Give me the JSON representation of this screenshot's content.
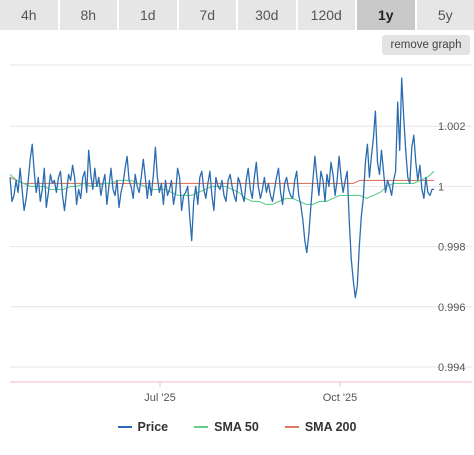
{
  "tabs": [
    {
      "label": "4h",
      "active": false
    },
    {
      "label": "8h",
      "active": false
    },
    {
      "label": "1d",
      "active": false
    },
    {
      "label": "7d",
      "active": false
    },
    {
      "label": "30d",
      "active": false
    },
    {
      "label": "120d",
      "active": false
    },
    {
      "label": "1y",
      "active": true
    },
    {
      "label": "5y",
      "active": false
    }
  ],
  "remove_label": "remove graph",
  "colors": {
    "price": "#2b6cb0",
    "sma50": "#5fcf8b",
    "sma200": "#e07860",
    "grid": "#e6e6e6",
    "axis": "#f0b9c6"
  },
  "chart_data": {
    "type": "line",
    "title": "",
    "xlabel": "",
    "ylabel": "",
    "x_ticks": [
      "Jul '25",
      "Oct '25"
    ],
    "y_ticks": [
      0.994,
      0.996,
      0.998,
      1,
      1.002
    ],
    "y_tick_labels": [
      "0.994",
      "0.996",
      "0.998",
      "1",
      "1.002"
    ],
    "ylim": [
      0.9935,
      1.0042
    ],
    "grid": "horizontal",
    "legend_position": "bottom",
    "series": [
      {
        "name": "Price",
        "color": "#2b6cb0",
        "values": [
          1.0003,
          0.9995,
          0.9997,
          1.0002,
          0.9998,
          1.0006,
          0.9999,
          0.9992,
          0.9996,
          1.0002,
          1.0009,
          1.0014,
          1.0005,
          0.9998,
          1.0003,
          0.9995,
          0.9999,
          1.0006,
          0.9993,
          0.9998,
          1.0004,
          1.0001,
          1.0002,
          0.9998,
          1.0003,
          1.0005,
          0.9997,
          0.9992,
          0.9998,
          1.0004,
          1.0002,
          1.0007,
          1.0003,
          0.9994,
          0.9999,
          0.9996,
          1.0003,
          1.0005,
          0.9998,
          1.0012,
          1.0004,
          0.9999,
          1.0006,
          1.0,
          1.0003,
          0.9997,
          1.0001,
          1.0004,
          0.9994,
          1.0,
          1.0006,
          0.9999,
          0.9997,
          1.0002,
          0.9993,
          0.9998,
          1.0001,
          1.0006,
          1.001,
          1.0002,
          1.0,
          0.9996,
          1.0004,
          1.0,
          0.9998,
          1.0003,
          1.0009,
          1.0003,
          0.9996,
          1.0002,
          0.9997,
          1.0004,
          1.0013,
          1.0003,
          0.9998,
          1.0001,
          0.9994,
          1.0002,
          0.9997,
          0.9999,
          1.0002,
          0.9994,
          0.9998,
          1.0006,
          1.0003,
          0.9992,
          0.9997,
          0.9998,
          1.0,
          0.999,
          0.9982,
          0.9995,
          1.0,
          0.9994,
          1.0003,
          1.0005,
          0.9999,
          0.9996,
          1.0001,
          1.0005,
          0.9997,
          0.9992,
          1.0003,
          1.0,
          0.9999,
          1.0002,
          0.9997,
          0.9995,
          1.0002,
          1.0004,
          1.0,
          0.9997,
          0.9995,
          1.0003,
          1.0001,
          0.9997,
          0.9995,
          1.0002,
          1.0006,
          0.9999,
          0.9996,
          1.0003,
          1.0008,
          1.0,
          0.9996,
          0.9999,
          1.0003,
          0.9998,
          1.0001,
          0.9997,
          0.9995,
          0.9999,
          1.0003,
          1.0006,
          0.9998,
          0.9994,
          1.0001,
          1.0003,
          0.9999,
          0.9997,
          0.9996,
          1.0002,
          1.0005,
          0.9997,
          0.9994,
          0.9989,
          0.9982,
          0.9978,
          0.9984,
          0.9993,
          1.0002,
          1.001,
          1.0003,
          0.9997,
          1.0005,
          1.0002,
          0.9995,
          1.0004,
          1.0,
          1.0008,
          1.0004,
          0.9997,
          1.0002,
          1.001,
          1.0003,
          0.9998,
          1.0002,
          1.0005,
          0.9989,
          0.9976,
          0.9969,
          0.9963,
          0.9967,
          0.998,
          0.999,
          0.9996,
          1.0008,
          1.0014,
          1.0003,
          1.001,
          1.0016,
          1.0025,
          1.0008,
          1.0004,
          1.0012,
          1.0005,
          0.9998,
          1.0002,
          1.0,
          0.9997,
          1.0002,
          1.0005,
          1.0028,
          1.0012,
          1.0036,
          1.0023,
          1.0012,
          1.0003,
          1.0001,
          1.0013,
          1.0017,
          1.0008,
          1.0002,
          1.0007,
          0.9999,
          0.9996,
          1.0003,
          0.9998,
          0.9997,
          0.9999,
          0.9999
        ]
      },
      {
        "name": "SMA 50",
        "color": "#5fcf8b",
        "values": [
          1.0004,
          1.0002,
          1.0001,
          1.0,
          1.0,
          1.0,
          0.9999,
          0.9999,
          0.9999,
          1.0,
          1.0,
          1.0001,
          1.0,
          1.0,
          1.0001,
          1.0001,
          1.0002,
          1.0002,
          1.0002,
          1.0001,
          1.0,
          0.9999,
          0.9999,
          0.9999,
          0.9998,
          0.9997,
          0.9997,
          0.9997,
          0.9998,
          0.9999,
          1.0,
          1.0,
          1.0,
          0.9999,
          0.9998,
          0.9996,
          0.9995,
          0.9995,
          0.9994,
          0.9994,
          0.9995,
          0.9996,
          0.9996,
          0.9995,
          0.9994,
          0.9994,
          0.9995,
          0.9995,
          0.9996,
          0.9997,
          0.9997,
          0.9997,
          0.9997,
          0.9996,
          0.9997,
          0.9998,
          1.0,
          1.0001,
          1.0001,
          1.0001,
          1.0001,
          1.0002,
          1.0003,
          1.0005
        ]
      },
      {
        "name": "SMA 200",
        "color": "#e07860",
        "values": [
          1.0003,
          1.0002,
          1.0001,
          1.0001,
          1.0001,
          1.0001,
          1.0001,
          1.0001,
          1.0001,
          1.0001,
          1.0001,
          1.0001,
          1.0001,
          1.0001,
          1.0001,
          1.0001,
          1.0001,
          1.0001,
          1.0001,
          1.0001,
          1.0001,
          1.0001,
          1.0001,
          1.0001,
          1.0001,
          1.0001,
          1.0001,
          1.0001,
          1.0001,
          1.0001,
          1.0001,
          1.0001,
          1.0001,
          1.0001,
          1.0001,
          1.0001,
          1.0001,
          1.0001,
          1.0001,
          1.0001,
          1.0001,
          1.0001,
          1.0001,
          1.0001,
          1.0001,
          1.0001,
          1.0001,
          1.0001,
          1.0001,
          1.0001,
          1.0001,
          1.0001,
          1.0002,
          1.0002,
          1.0002,
          1.0002,
          1.0002,
          1.0002,
          1.0002,
          1.0002,
          1.0002,
          1.0002,
          1.0002,
          1.0002
        ]
      }
    ]
  }
}
